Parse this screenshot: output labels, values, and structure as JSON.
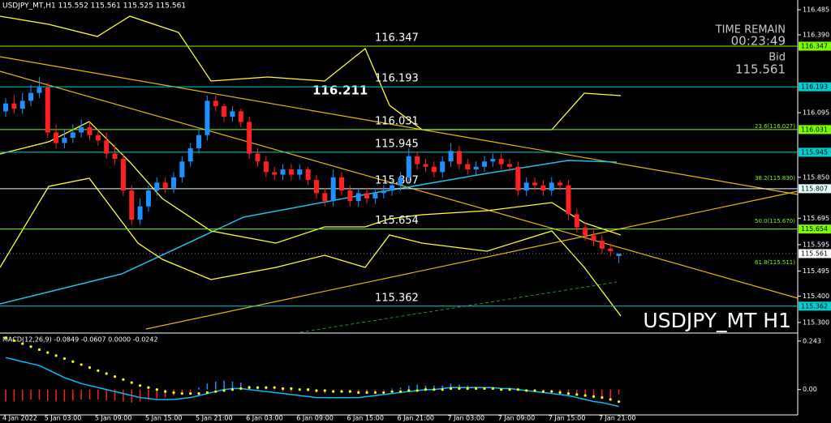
{
  "header": {
    "symbol_line": "USDJPY_MT,H1  115.552 115.561 115.525 115.561",
    "time_remain_label": "TIME REMAIN",
    "time_remain": "00:23:49",
    "bid_label": "Bid",
    "bid": "115.561",
    "marker": "116.211",
    "watermark": "USDJPY_MT H1",
    "fib_labels": [
      "23.6(116.027)",
      "38.2(115.830)",
      "50.0(115.670)",
      "61.8(115.511)"
    ]
  },
  "chart_data": [
    {
      "type": "candlestick",
      "up_color": "#1e90ff",
      "down_color": "#ff2020",
      "categories": [
        "4 Jan 2022",
        null,
        null,
        null,
        null,
        "5 Jan 03:00",
        null,
        null,
        null,
        null,
        null,
        "5 Jan 09:00",
        null,
        null,
        null,
        null,
        null,
        "5 Jan 15:00",
        null,
        null,
        null,
        null,
        null,
        "5 Jan 21:00",
        null,
        null,
        null,
        null,
        null,
        "6 Jan 03:00",
        null,
        null,
        null,
        null,
        null,
        "6 Jan 09:00",
        null,
        null,
        null,
        null,
        null,
        "6 Jan 15:00",
        null,
        null,
        null,
        null,
        null,
        "6 Jan 21:00",
        null,
        null,
        null,
        null,
        null,
        "7 Jan 03:00",
        null,
        null,
        null,
        null,
        null,
        "7 Jan 09:00",
        null,
        null,
        null,
        null,
        null,
        "7 Jan 15:00",
        null,
        null,
        null,
        null,
        null,
        "7 Jan 21:00",
        null,
        null
      ],
      "open": [
        116.1,
        116.13,
        116.11,
        116.14,
        116.17,
        116.19,
        116.02,
        115.98,
        116.0,
        116.02,
        116.04,
        116.01,
        115.99,
        115.94,
        115.92,
        115.8,
        115.69,
        115.74,
        115.8,
        115.83,
        115.81,
        115.85,
        115.91,
        115.96,
        116.01,
        116.14,
        116.12,
        116.08,
        116.1,
        116.06,
        115.94,
        115.91,
        115.87,
        115.86,
        115.88,
        115.86,
        115.88,
        115.84,
        115.79,
        115.76,
        115.85,
        115.8,
        115.76,
        115.79,
        115.77,
        115.79,
        115.8,
        115.82,
        115.85,
        115.93,
        115.9,
        115.89,
        115.87,
        115.91,
        115.95,
        115.9,
        115.88,
        115.89,
        115.91,
        115.92,
        115.9,
        115.89,
        115.8,
        115.83,
        115.82,
        115.8,
        115.83,
        115.82,
        115.71,
        115.66,
        115.63,
        115.61,
        115.58,
        115.552
      ],
      "high": [
        116.15,
        116.16,
        116.17,
        116.2,
        116.23,
        116.21,
        116.05,
        116.03,
        116.05,
        116.07,
        116.06,
        116.03,
        116.02,
        115.97,
        115.94,
        115.82,
        115.77,
        115.82,
        115.85,
        115.85,
        115.87,
        115.93,
        115.98,
        116.04,
        116.16,
        116.16,
        116.13,
        116.12,
        116.11,
        116.08,
        115.96,
        115.93,
        115.89,
        115.9,
        115.9,
        115.9,
        115.89,
        115.86,
        115.81,
        115.88,
        115.87,
        115.82,
        115.81,
        115.81,
        115.81,
        115.82,
        115.84,
        115.87,
        115.96,
        115.95,
        115.92,
        115.91,
        115.93,
        115.98,
        115.97,
        115.92,
        115.91,
        115.93,
        115.94,
        115.94,
        115.92,
        115.91,
        115.85,
        115.85,
        115.84,
        115.85,
        115.84,
        115.84,
        115.73,
        115.68,
        115.65,
        115.63,
        115.6,
        115.561
      ],
      "low": [
        116.08,
        116.09,
        116.09,
        116.12,
        116.15,
        116.0,
        115.96,
        115.96,
        115.98,
        116.0,
        115.99,
        115.97,
        115.92,
        115.9,
        115.78,
        115.67,
        115.67,
        115.72,
        115.78,
        115.79,
        115.79,
        115.83,
        115.89,
        115.94,
        115.99,
        116.1,
        116.06,
        116.06,
        116.04,
        115.92,
        115.89,
        115.85,
        115.84,
        115.84,
        115.84,
        115.84,
        115.82,
        115.77,
        115.74,
        115.74,
        115.78,
        115.74,
        115.74,
        115.75,
        115.75,
        115.77,
        115.78,
        115.8,
        115.83,
        115.88,
        115.87,
        115.85,
        115.85,
        115.89,
        115.88,
        115.86,
        115.86,
        115.87,
        115.89,
        115.88,
        115.87,
        115.78,
        115.78,
        115.8,
        115.78,
        115.78,
        115.8,
        115.69,
        115.64,
        115.61,
        115.59,
        115.56,
        115.55,
        115.525
      ],
      "close": [
        116.13,
        116.11,
        116.14,
        116.17,
        116.19,
        116.02,
        115.98,
        116.0,
        116.02,
        116.04,
        116.01,
        115.99,
        115.94,
        115.92,
        115.8,
        115.69,
        115.74,
        115.8,
        115.83,
        115.81,
        115.85,
        115.91,
        115.96,
        116.01,
        116.14,
        116.12,
        116.08,
        116.1,
        116.06,
        115.94,
        115.91,
        115.87,
        115.86,
        115.88,
        115.86,
        115.88,
        115.84,
        115.79,
        115.76,
        115.85,
        115.8,
        115.76,
        115.79,
        115.77,
        115.79,
        115.8,
        115.82,
        115.85,
        115.93,
        115.9,
        115.89,
        115.87,
        115.91,
        115.95,
        115.9,
        115.88,
        115.89,
        115.91,
        115.92,
        115.9,
        115.89,
        115.8,
        115.83,
        115.82,
        115.8,
        115.83,
        115.82,
        115.71,
        115.66,
        115.63,
        115.61,
        115.58,
        115.57,
        115.561
      ],
      "ylim": [
        115.263,
        116.522
      ],
      "yticks": [
        116.485,
        {
          "value": 116.39,
          "label": "116.390"
        },
        116.095,
        {
          "value": 115.85,
          "label": "115.850"
        },
        115.695,
        115.595,
        115.495,
        {
          "value": 115.4,
          "label": "115.400"
        },
        {
          "value": 115.3,
          "label": "115.300"
        }
      ],
      "levels": [
        116.347,
        116.193,
        116.031,
        115.945,
        115.807,
        115.654,
        115.362
      ],
      "level_colors": [
        "#7cfc00",
        "#00ced1",
        "#7cfc00",
        "#00ced1",
        "#e0ffff",
        "#7cfc00",
        "#00ced1"
      ],
      "bid_price": 115.561
    },
    {
      "type": "macd",
      "title": "MACD(12,26,9) -0.0849 -0.0607 0.0000 -0.0242",
      "histogram": [
        -0.06,
        -0.06,
        -0.055,
        -0.05,
        -0.05,
        -0.055,
        -0.06,
        -0.06,
        -0.055,
        -0.05,
        -0.05,
        -0.05,
        -0.055,
        -0.055,
        -0.06,
        -0.065,
        -0.06,
        -0.05,
        -0.045,
        -0.04,
        -0.03,
        -0.02,
        -0.01,
        0.01,
        0.03,
        0.04,
        0.045,
        0.04,
        0.035,
        0.02,
        0.01,
        0.005,
        -0.005,
        -0.01,
        -0.01,
        -0.005,
        -0.01,
        -0.015,
        -0.02,
        -0.01,
        -0.01,
        -0.015,
        -0.015,
        -0.01,
        -0.01,
        -0.005,
        0.005,
        0.01,
        0.02,
        0.025,
        0.02,
        0.02,
        0.02,
        0.03,
        0.025,
        0.02,
        0.015,
        0.01,
        0.01,
        0.005,
        0.005,
        0,
        -0.005,
        -0.005,
        -0.01,
        -0.01,
        -0.015,
        -0.02,
        -0.025,
        -0.03,
        -0.035,
        -0.04,
        -0.05,
        -0.0242
      ],
      "signal": [
        0.26,
        0.245,
        0.23,
        0.215,
        0.2,
        0.185,
        0.17,
        0.155,
        0.14,
        0.125,
        0.11,
        0.095,
        0.08,
        0.065,
        0.05,
        0.035,
        0.02,
        0.01,
        0,
        -0.01,
        -0.015,
        -0.02,
        -0.02,
        -0.02,
        -0.015,
        -0.01,
        -0.005,
        0,
        0.005,
        0.01,
        0.01,
        0.01,
        0.01,
        0.005,
        0.005,
        0,
        0,
        -0.005,
        -0.005,
        -0.01,
        -0.01,
        -0.01,
        -0.015,
        -0.015,
        -0.015,
        -0.015,
        -0.01,
        -0.01,
        -0.005,
        -0.005,
        0,
        0,
        0,
        0.005,
        0.005,
        0.005,
        0.005,
        0.005,
        0.005,
        0,
        0,
        0,
        -0.005,
        -0.005,
        -0.01,
        -0.01,
        -0.015,
        -0.02,
        -0.025,
        -0.03,
        -0.035,
        -0.04,
        -0.05,
        -0.0607
      ],
      "main": [
        0.16,
        0.15,
        0.14,
        0.13,
        0.12,
        0.1,
        0.08,
        0.06,
        0.045,
        0.03,
        0.02,
        0.01,
        0,
        -0.01,
        -0.02,
        -0.03,
        -0.04,
        -0.045,
        -0.05,
        -0.05,
        -0.05,
        -0.045,
        -0.04,
        -0.03,
        -0.02,
        -0.01,
        0,
        0.005,
        0.005,
        0,
        -0.005,
        -0.01,
        -0.015,
        -0.02,
        -0.025,
        -0.03,
        -0.035,
        -0.04,
        -0.04,
        -0.04,
        -0.04,
        -0.04,
        -0.04,
        -0.035,
        -0.03,
        -0.025,
        -0.02,
        -0.015,
        -0.01,
        -0.005,
        0,
        0,
        0.005,
        0.01,
        0.01,
        0.01,
        0.01,
        0.01,
        0.01,
        0.005,
        0.005,
        0,
        -0.005,
        -0.01,
        -0.015,
        -0.02,
        -0.025,
        -0.03,
        -0.04,
        -0.05,
        -0.06,
        -0.065,
        -0.075,
        -0.0849
      ],
      "hist_up_color": "#1e90ff",
      "hist_down_color": "#ff2020",
      "signal_color": "#ffff00",
      "main_color": "#00bfff",
      "ylim": [
        -0.127,
        0.279
      ],
      "yticks": [
        0.243,
        {
          "value": 0,
          "label": "0.00"
        }
      ]
    }
  ]
}
